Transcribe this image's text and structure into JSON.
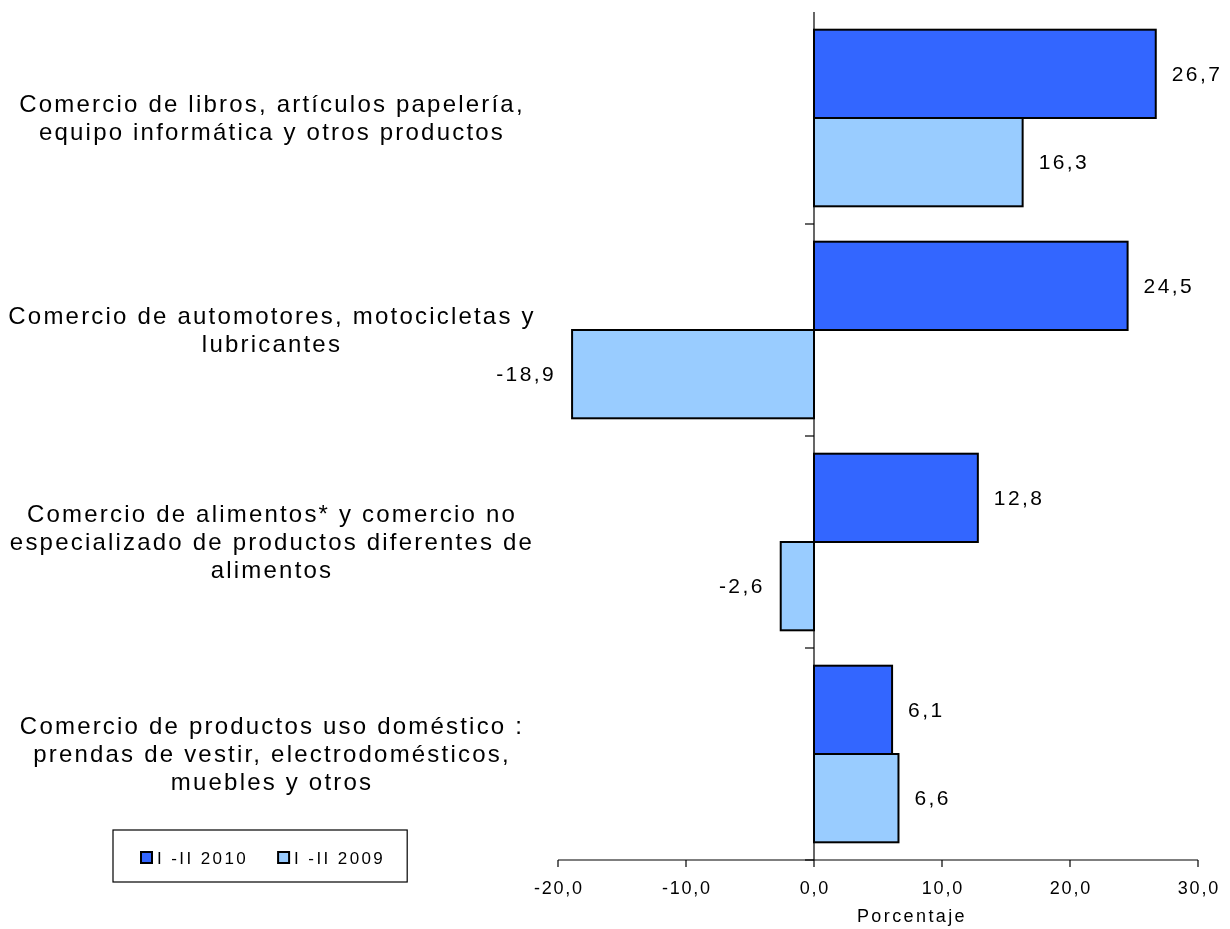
{
  "chart_data": {
    "type": "bar",
    "orientation": "horizontal",
    "categories": [
      "Comercio de libros, artículos papelería, equipo informática y otros productos",
      "Comercio de automotores, motocicletas y lubricantes",
      "Comercio de alimentos* y comercio no especializado de productos diferentes de alimentos",
      "Comercio de productos uso doméstico : prendas de vestir, electrodomésticos, muebles y otros"
    ],
    "series": [
      {
        "name": "I -II 2010",
        "color": "#3366ff",
        "values": [
          26.7,
          24.5,
          12.8,
          6.1
        ],
        "value_labels": [
          "26,7",
          "24,5",
          "12,8",
          "6,1"
        ]
      },
      {
        "name": "I -II 2009",
        "color": "#99ccff",
        "values": [
          16.3,
          -18.9,
          -2.6,
          6.6
        ],
        "value_labels": [
          "16,3",
          "-18,9",
          "-2,6",
          "6,6"
        ]
      }
    ],
    "xlim": [
      -20,
      30
    ],
    "xticks": [
      {
        "value": -20,
        "label": "-20,0"
      },
      {
        "value": -10,
        "label": "-10,0"
      },
      {
        "value": 0,
        "label": "0,0"
      },
      {
        "value": 10,
        "label": "10,0"
      },
      {
        "value": 20,
        "label": "20,0"
      },
      {
        "value": 30,
        "label": "30,0"
      }
    ],
    "xlabel": "Porcentaje",
    "legend": "bottom left"
  }
}
